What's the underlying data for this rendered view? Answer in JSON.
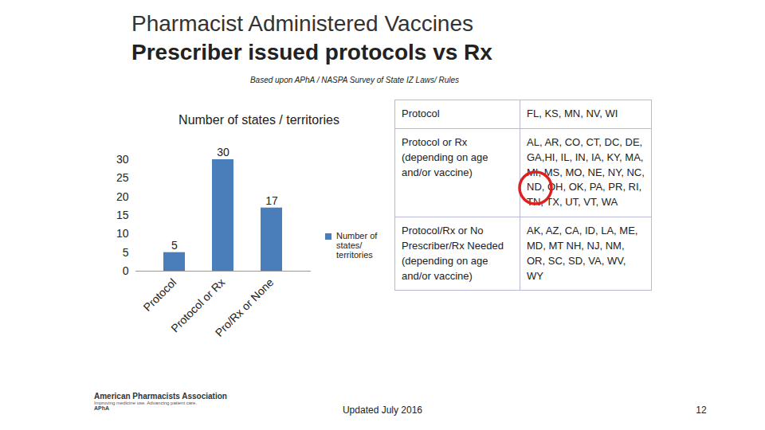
{
  "chart_data": {
    "type": "bar",
    "title": "Number of states / territories",
    "categories": [
      "Protocol",
      "Protocol or Rx",
      "Pro/Rx or None"
    ],
    "series": [
      {
        "name": "Number of states/ territories",
        "color": "#4a7ebb",
        "values": [
          5,
          30,
          17
        ]
      }
    ],
    "ylim": [
      0,
      30
    ],
    "yticks": [
      0,
      5,
      10,
      15,
      20,
      25,
      30
    ],
    "grid": false,
    "data_labels": true,
    "legend": "right"
  },
  "slide": {
    "title": "Pharmacist Administered Vaccines",
    "subtitle": "Prescriber issued protocols vs Rx",
    "note": "Based upon APhA / NASPA Survey of State IZ Laws/ Rules",
    "table": {
      "rows": [
        [
          "Protocol",
          "FL, KS, MN, NV, WI"
        ],
        [
          "Protocol or Rx (depending on age and/or vaccine)",
          "AL, AR, CO, CT, DC, DE, GA,HI, IL, IN, IA, KY, MA, MI, MS, MO, NE, NY, NC, ND, OH, OK, PA, PR, RI, TN, TX, UT, VT, WA"
        ],
        [
          "Protocol/Rx or No Prescriber/Rx Needed (depending on age and/or vaccine)",
          "AK, AZ, CA, ID, LA, ME, MD, MT NH, NJ, NM, OR, SC, SD, VA, WV, WY"
        ]
      ]
    },
    "footer": {
      "updated": "Updated July 2016",
      "page": "12",
      "logo": {
        "name": "American Pharmacists Association",
        "tagline": "Improving medicine use. Advancing patient care.",
        "short": "APhA"
      }
    }
  }
}
